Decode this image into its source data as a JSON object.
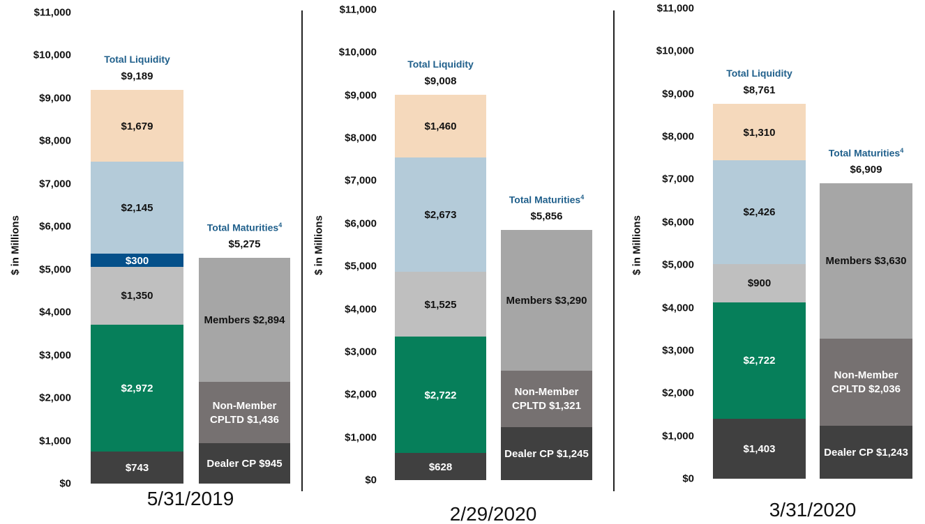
{
  "chart_data": [
    {
      "type": "stacked-bar",
      "x_label": "5/31/2019",
      "y_label": "$ in Millions",
      "ylim": [
        0,
        11000
      ],
      "yticks": [
        {
          "value": 0,
          "label": "$0"
        },
        {
          "value": 1000,
          "label": "$1,000"
        },
        {
          "value": 2000,
          "label": "$2,000"
        },
        {
          "value": 3000,
          "label": "$3,000"
        },
        {
          "value": 4000,
          "label": "$4,000"
        },
        {
          "value": 5000,
          "label": "$5,000"
        },
        {
          "value": 6000,
          "label": "$6,000"
        },
        {
          "value": 7000,
          "label": "$7,000"
        },
        {
          "value": 8000,
          "label": "$8,000"
        },
        {
          "value": 9000,
          "label": "$9,000"
        },
        {
          "value": 10000,
          "label": "$10,000"
        },
        {
          "value": 11000,
          "label": "$11,000"
        }
      ],
      "stacks": [
        {
          "title": "Total Liquidity",
          "total": 9189,
          "total_label": "$9,189",
          "values": [
            743,
            2972,
            1350,
            300,
            2145,
            1679
          ],
          "value_labels": [
            "$743",
            "$2,972",
            "$1,350",
            "$300",
            "$2,145",
            "$1,679"
          ],
          "colors": [
            "#404040",
            "#067f5a",
            "#bfbfbf",
            "#05508a",
            "#b4cbd9",
            "#f5d9bc"
          ]
        },
        {
          "title": "Total Maturities",
          "footnote": "4",
          "total": 5275,
          "total_label": "$5,275",
          "values": [
            945,
            1436,
            2894
          ],
          "value_labels": [
            "Dealer CP $945",
            "Non-Member\nCPLTD $1,436",
            "Members $2,894"
          ],
          "colors": [
            "#404040",
            "#767171",
            "#a6a6a6"
          ]
        }
      ]
    },
    {
      "type": "stacked-bar",
      "x_label": "2/29/2020",
      "y_label": "$ in Millions",
      "ylim": [
        0,
        11000
      ],
      "yticks": [
        {
          "value": 0,
          "label": "$0"
        },
        {
          "value": 1000,
          "label": "$1,000"
        },
        {
          "value": 2000,
          "label": "$2,000"
        },
        {
          "value": 3000,
          "label": "$3,000"
        },
        {
          "value": 4000,
          "label": "$4,000"
        },
        {
          "value": 5000,
          "label": "$5,000"
        },
        {
          "value": 6000,
          "label": "$6,000"
        },
        {
          "value": 7000,
          "label": "$7,000"
        },
        {
          "value": 8000,
          "label": "$8,000"
        },
        {
          "value": 9000,
          "label": "$9,000"
        },
        {
          "value": 10000,
          "label": "$10,000"
        },
        {
          "value": 11000,
          "label": "$11,000"
        }
      ],
      "stacks": [
        {
          "title": "Total Liquidity",
          "total": 9008,
          "total_label": "$9,008",
          "values": [
            628,
            2722,
            1525,
            2673,
            1460
          ],
          "value_labels": [
            "$628",
            "$2,722",
            "$1,525",
            "$2,673",
            "$1,460"
          ],
          "colors": [
            "#404040",
            "#067f5a",
            "#bfbfbf",
            "#b4cbd9",
            "#f5d9bc"
          ]
        },
        {
          "title": "Total Maturities",
          "footnote": "4",
          "total": 5856,
          "total_label": "$5,856",
          "values": [
            1245,
            1321,
            3290
          ],
          "value_labels": [
            "Dealer CP $1,245",
            "Non-Member\nCPLTD $1,321",
            "Members $3,290"
          ],
          "colors": [
            "#404040",
            "#767171",
            "#a6a6a6"
          ]
        }
      ]
    },
    {
      "type": "stacked-bar",
      "x_label": "3/31/2020",
      "y_label": "$ in Millions",
      "ylim": [
        0,
        11000
      ],
      "yticks": [
        {
          "value": 0,
          "label": "$0"
        },
        {
          "value": 1000,
          "label": "$1,000"
        },
        {
          "value": 2000,
          "label": "$2,000"
        },
        {
          "value": 3000,
          "label": "$3,000"
        },
        {
          "value": 4000,
          "label": "$4,000"
        },
        {
          "value": 5000,
          "label": "$5,000"
        },
        {
          "value": 6000,
          "label": "$6,000"
        },
        {
          "value": 7000,
          "label": "$7,000"
        },
        {
          "value": 8000,
          "label": "$8,000"
        },
        {
          "value": 9000,
          "label": "$9,000"
        },
        {
          "value": 10000,
          "label": "$10,000"
        },
        {
          "value": 11000,
          "label": "$11,000"
        }
      ],
      "stacks": [
        {
          "title": "Total Liquidity",
          "total": 8761,
          "total_label": "$8,761",
          "values": [
            1403,
            2722,
            900,
            2426,
            1310
          ],
          "value_labels": [
            "$1,403",
            "$2,722",
            "$900",
            "$2,426",
            "$1,310"
          ],
          "colors": [
            "#404040",
            "#067f5a",
            "#bfbfbf",
            "#b4cbd9",
            "#f5d9bc"
          ]
        },
        {
          "title": "Total Maturities",
          "footnote": "4",
          "total": 6909,
          "total_label": "$6,909",
          "values": [
            1243,
            2036,
            3630
          ],
          "value_labels": [
            "Dealer CP $1,243",
            "Non-Member\nCPLTD $2,036",
            "Members $3,630"
          ],
          "colors": [
            "#404040",
            "#767171",
            "#a6a6a6"
          ]
        }
      ]
    }
  ]
}
